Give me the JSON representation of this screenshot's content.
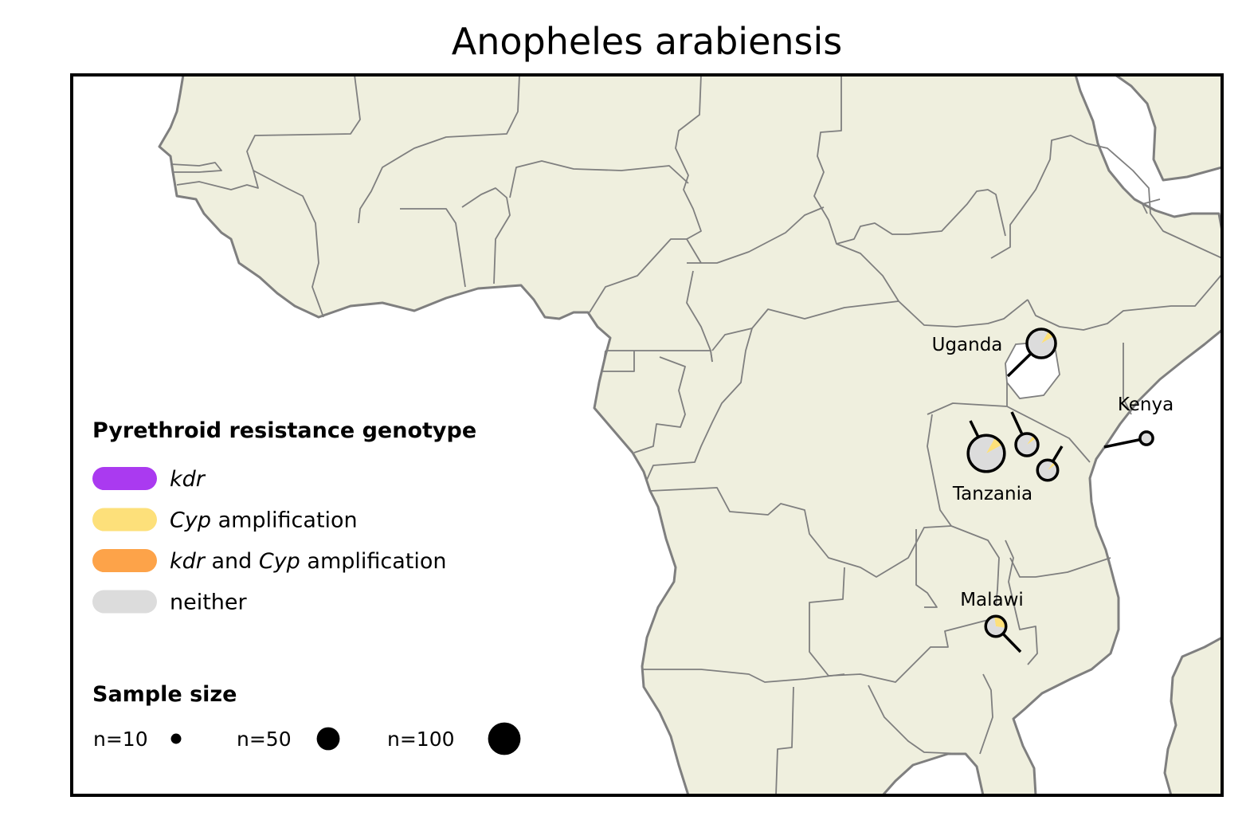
{
  "title": "Anopheles arabiensis",
  "colors": {
    "land": "#efefde",
    "coast": "#7f7f7f",
    "water": "#ffffff",
    "kdr": "#aa3af0",
    "cyp": "#fde07a",
    "both": "#fda349",
    "neither": "#dcdcdc"
  },
  "legend": {
    "genotype_title": "Pyrethroid resistance genotype",
    "items": [
      {
        "key": "kdr",
        "parts": [
          {
            "text": "kdr",
            "italic": true
          }
        ],
        "color": "#aa3af0"
      },
      {
        "key": "cyp",
        "parts": [
          {
            "text": "Cyp",
            "italic": true
          },
          {
            "text": " amplification",
            "italic": false
          }
        ],
        "color": "#fde07a"
      },
      {
        "key": "both",
        "parts": [
          {
            "text": "kdr",
            "italic": true
          },
          {
            "text": " and ",
            "italic": false
          },
          {
            "text": "Cyp",
            "italic": true
          },
          {
            "text": " amplification",
            "italic": false
          }
        ],
        "color": "#fda349"
      },
      {
        "key": "neither",
        "parts": [
          {
            "text": "neither",
            "italic": false
          }
        ],
        "color": "#dcdcdc"
      }
    ],
    "size_title": "Sample size",
    "sizes": [
      {
        "label": "n=10",
        "n": 10
      },
      {
        "label": "n=50",
        "n": 50
      },
      {
        "label": "n=100",
        "n": 100
      }
    ]
  },
  "country_labels": {
    "uganda": "Uganda",
    "kenya": "Kenya",
    "tanzania": "Tanzania",
    "malawi": "Malawi"
  },
  "sites": [
    {
      "id": "uganda-site",
      "country": "Uganda",
      "n": 50,
      "kdr": 0.0,
      "cyp": 0.08,
      "both": 0.0,
      "neither": 0.92
    },
    {
      "id": "kenya-site",
      "country": "Kenya",
      "n": 10,
      "kdr": 0.0,
      "cyp": 0.0,
      "both": 0.0,
      "neither": 1.0
    },
    {
      "id": "tanzania-site-1",
      "country": "Tanzania",
      "n": 80,
      "kdr": 0.0,
      "cyp": 0.09,
      "both": 0.0,
      "neither": 0.91
    },
    {
      "id": "tanzania-site-2",
      "country": "Tanzania",
      "n": 30,
      "kdr": 0.0,
      "cyp": 0.06,
      "both": 0.0,
      "neither": 0.94
    },
    {
      "id": "tanzania-site-3",
      "country": "Tanzania",
      "n": 25,
      "kdr": 0.0,
      "cyp": 0.05,
      "both": 0.0,
      "neither": 0.95
    },
    {
      "id": "malawi-site",
      "country": "Malawi",
      "n": 25,
      "kdr": 0.0,
      "cyp": 0.3,
      "both": 0.0,
      "neither": 0.7
    }
  ]
}
